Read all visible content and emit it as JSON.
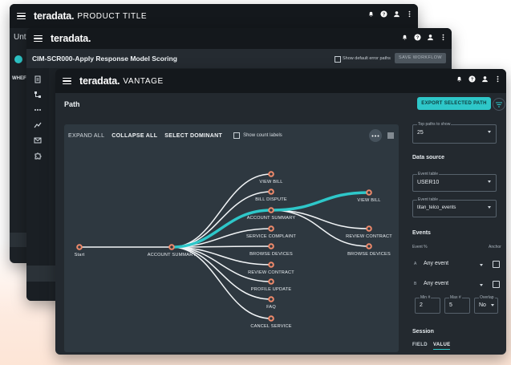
{
  "colors": {
    "accent": "#2ec7c9",
    "node": "#f08a6b",
    "bg": "#23292f",
    "canvas": "#2e3840"
  },
  "window1": {
    "brand": "teradata.",
    "product": "PRODUCT TITLE",
    "tab_partial": "Unt",
    "tab_label_partial": "WHEF"
  },
  "window2": {
    "brand": "teradata.",
    "title": "CIM-SCR000-Apply Response Model Scoring",
    "checkbox_label": "Show default error paths",
    "save_label": "SAVE WORKFLOW"
  },
  "window3": {
    "brand": "teradata.",
    "product": "VANTAGE",
    "page_title": "Path",
    "export_label": "EXPORT SELECTED PATH",
    "toolbar": {
      "expand": "EXPAND ALL",
      "collapse": "COLLAPSE ALL",
      "select": "SELECT DOMINANT",
      "count_labels": "Show count labels"
    },
    "nodes": {
      "start": "Start",
      "account_summary": "ACCOUNT SUMMARY",
      "view_bill": "VIEW BILL",
      "bill_dispute": "BILL DISPUTE",
      "account_summary_2": "ACCOUNT SUMMARY",
      "service_complaint": "SERVICE COMPLAINT",
      "browse_devices": "BROWSE DEVICES",
      "review_contract": "REVIEW CONTRACT",
      "profile_update": "PROFILE UPDATE",
      "faq": "FAQ",
      "cancel_service": "CANCEL SERVICE",
      "view_bill_2": "VIEW BILL",
      "review_contract_2": "REVIEW CONTRACT",
      "browse_devices_2": "BROWSE DEVICES"
    },
    "panel": {
      "top_paths_label": "Top paths to show",
      "top_paths_value": "25",
      "data_source": "Data source",
      "event_table_label": "Event table",
      "event_table_value": "USER10",
      "event_table2_label": "Event table",
      "event_table2_value": "titan_telco_events",
      "events": "Events",
      "event_pct": "Event %",
      "anchor": "Anchor",
      "row_a_letter": "A",
      "row_a_value": "Any event",
      "row_b_letter": "B",
      "row_b_value": "Any event",
      "min_label": "Min #",
      "min_value": "2",
      "max_label": "Max #",
      "max_value": "5",
      "overlap_label": "Overlap",
      "overlap_value": "No",
      "session": "Session",
      "tab_field": "FIELD",
      "tab_value": "VALUE"
    }
  }
}
